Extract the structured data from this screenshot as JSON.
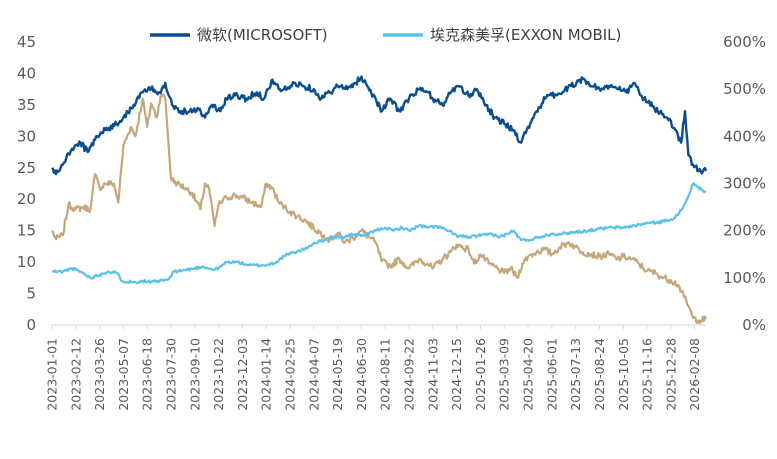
{
  "chart_data": {
    "type": "line",
    "title": "",
    "legend_position": "top",
    "colors": {
      "msft": "#0b4e8e",
      "xom": "#5bc1ea",
      "ratio": "#c4a77b",
      "axis": "#d9d9d9",
      "text": "#595959"
    },
    "series": [
      {
        "name": "微软(MICROSOFT)",
        "axis": "left",
        "color": "#0b4e8e",
        "in_legend": true
      },
      {
        "name": "埃克森美孚(EXXON MOBIL)",
        "axis": "left",
        "color": "#5bc1ea",
        "in_legend": true
      },
      {
        "name": "",
        "axis": "right",
        "color": "#c4a77b",
        "in_legend": false
      }
    ],
    "left_axis": {
      "min": 0,
      "max": 45,
      "ticks": [
        "0",
        "5",
        "10",
        "15",
        "20",
        "25",
        "30",
        "35",
        "40",
        "45"
      ]
    },
    "right_axis": {
      "min": 0,
      "max": 600,
      "ticks": [
        "0%",
        "100%",
        "200%",
        "300%",
        "400%",
        "500%",
        "600%"
      ]
    },
    "x_start": "2023-01-01",
    "x_end": "2026-02-28",
    "x_ticks": [
      "2023-01-01",
      "2023-02-12",
      "2023-03-26",
      "2023-05-07",
      "2023-06-18",
      "2023-07-30",
      "2023-09-10",
      "2023-10-22",
      "2023-12-03",
      "2024-01-14",
      "2024-02-25",
      "2024-04-07",
      "2024-05-19",
      "2024-06-30",
      "2024-08-11",
      "2024-09-22",
      "2024-11-03",
      "2024-12-15",
      "2025-01-26",
      "2025-03-09",
      "2025-04-20",
      "2025-06-01",
      "2025-07-13",
      "2025-08-24",
      "2025-10-05",
      "2025-11-16",
      "2025-12-28",
      "2026-02-08"
    ],
    "msft_points": [
      [
        "2023-01-01",
        25
      ],
      [
        "2023-01-08",
        24
      ],
      [
        "2023-01-20",
        25.5
      ],
      [
        "2023-02-05",
        28
      ],
      [
        "2023-02-20",
        29
      ],
      [
        "2023-03-05",
        27.5
      ],
      [
        "2023-03-20",
        30
      ],
      [
        "2023-04-05",
        31
      ],
      [
        "2023-04-25",
        32
      ],
      [
        "2023-05-07",
        33
      ],
      [
        "2023-05-25",
        35
      ],
      [
        "2023-06-10",
        37
      ],
      [
        "2023-06-25",
        37.5
      ],
      [
        "2023-07-10",
        37
      ],
      [
        "2023-07-20",
        38.5
      ],
      [
        "2023-08-01",
        35
      ],
      [
        "2023-08-15",
        34
      ],
      [
        "2023-09-01",
        34
      ],
      [
        "2023-09-15",
        34.5
      ],
      [
        "2023-09-28",
        33
      ],
      [
        "2023-10-10",
        35
      ],
      [
        "2023-10-25",
        34
      ],
      [
        "2023-11-05",
        36
      ],
      [
        "2023-11-20",
        36.5
      ],
      [
        "2023-12-10",
        36
      ],
      [
        "2023-12-28",
        37
      ],
      [
        "2024-01-10",
        36
      ],
      [
        "2024-01-25",
        39
      ],
      [
        "2024-02-05",
        37.5
      ],
      [
        "2024-02-20",
        37.5
      ],
      [
        "2024-03-05",
        38.5
      ],
      [
        "2024-03-20",
        38
      ],
      [
        "2024-04-07",
        37.5
      ],
      [
        "2024-04-20",
        36
      ],
      [
        "2024-05-05",
        37
      ],
      [
        "2024-05-19",
        38
      ],
      [
        "2024-06-05",
        37.5
      ],
      [
        "2024-06-20",
        38.5
      ],
      [
        "2024-06-30",
        39.5
      ],
      [
        "2024-07-10",
        38
      ],
      [
        "2024-07-25",
        36
      ],
      [
        "2024-08-05",
        34
      ],
      [
        "2024-08-20",
        36
      ],
      [
        "2024-09-05",
        34
      ],
      [
        "2024-09-22",
        36
      ],
      [
        "2024-10-10",
        37.5
      ],
      [
        "2024-10-25",
        37
      ],
      [
        "2024-11-03",
        36
      ],
      [
        "2024-11-20",
        35
      ],
      [
        "2024-12-05",
        37
      ],
      [
        "2024-12-15",
        38
      ],
      [
        "2025-01-05",
        36.5
      ],
      [
        "2025-01-20",
        37.5
      ],
      [
        "2025-02-05",
        35
      ],
      [
        "2025-02-20",
        33
      ],
      [
        "2025-03-09",
        32
      ],
      [
        "2025-03-25",
        31
      ],
      [
        "2025-04-08",
        29
      ],
      [
        "2025-04-20",
        31.5
      ],
      [
        "2025-05-05",
        34
      ],
      [
        "2025-05-20",
        36
      ],
      [
        "2025-06-01",
        36.5
      ],
      [
        "2025-06-20",
        37
      ],
      [
        "2025-07-05",
        38
      ],
      [
        "2025-07-20",
        39
      ],
      [
        "2025-08-05",
        38.5
      ],
      [
        "2025-08-24",
        37.5
      ],
      [
        "2025-09-10",
        38
      ],
      [
        "2025-09-25",
        37.5
      ],
      [
        "2025-10-10",
        37
      ],
      [
        "2025-10-25",
        38.5
      ],
      [
        "2025-11-05",
        36.5
      ],
      [
        "2025-11-16",
        35.5
      ],
      [
        "2025-12-05",
        34
      ],
      [
        "2025-12-20",
        33
      ],
      [
        "2026-01-05",
        31
      ],
      [
        "2026-01-15",
        29
      ],
      [
        "2026-01-22",
        34
      ],
      [
        "2026-01-28",
        27
      ],
      [
        "2026-02-05",
        25.5
      ],
      [
        "2026-02-15",
        24.5
      ],
      [
        "2026-02-28",
        24.5
      ]
    ],
    "xom_points": [
      [
        "2023-01-01",
        8.5
      ],
      [
        "2023-01-20",
        8.5
      ],
      [
        "2023-02-05",
        9
      ],
      [
        "2023-02-20",
        8.5
      ],
      [
        "2023-03-10",
        7.5
      ],
      [
        "2023-03-26",
        8
      ],
      [
        "2023-04-10",
        8.5
      ],
      [
        "2023-04-25",
        8.3
      ],
      [
        "2023-05-05",
        7
      ],
      [
        "2023-05-25",
        6.8
      ],
      [
        "2023-06-10",
        7
      ],
      [
        "2023-06-25",
        6.8
      ],
      [
        "2023-07-10",
        7
      ],
      [
        "2023-07-25",
        7.2
      ],
      [
        "2023-08-05",
        8.5
      ],
      [
        "2023-08-20",
        8.7
      ],
      [
        "2023-09-10",
        9
      ],
      [
        "2023-09-25",
        9.3
      ],
      [
        "2023-10-10",
        8.8
      ],
      [
        "2023-10-22",
        9
      ],
      [
        "2023-11-05",
        10
      ],
      [
        "2023-11-25",
        10
      ],
      [
        "2023-12-15",
        9.5
      ],
      [
        "2024-01-14",
        9.5
      ],
      [
        "2024-02-01",
        10
      ],
      [
        "2024-02-15",
        11
      ],
      [
        "2024-03-01",
        11.5
      ],
      [
        "2024-03-20",
        12
      ],
      [
        "2024-04-07",
        13
      ],
      [
        "2024-04-25",
        13.5
      ],
      [
        "2024-05-10",
        14
      ],
      [
        "2024-06-01",
        14
      ],
      [
        "2024-06-20",
        14.5
      ],
      [
        "2024-07-05",
        14.2
      ],
      [
        "2024-07-25",
        15
      ],
      [
        "2024-08-11",
        15.5
      ],
      [
        "2024-08-25",
        15
      ],
      [
        "2024-09-10",
        15.5
      ],
      [
        "2024-09-22",
        15
      ],
      [
        "2024-10-10",
        15.8
      ],
      [
        "2024-10-25",
        15.5
      ],
      [
        "2024-11-10",
        15.7
      ],
      [
        "2024-11-25",
        15.2
      ],
      [
        "2024-12-15",
        14.2
      ],
      [
        "2025-01-05",
        14
      ],
      [
        "2025-01-26",
        14.2
      ],
      [
        "2025-02-15",
        14.5
      ],
      [
        "2025-03-01",
        14
      ],
      [
        "2025-03-15",
        14.5
      ],
      [
        "2025-03-25",
        15
      ],
      [
        "2025-04-08",
        13.5
      ],
      [
        "2025-04-20",
        13.5
      ],
      [
        "2025-05-10",
        14
      ],
      [
        "2025-06-01",
        14.5
      ],
      [
        "2025-06-20",
        14.5
      ],
      [
        "2025-07-13",
        14.8
      ],
      [
        "2025-08-05",
        15
      ],
      [
        "2025-08-24",
        15.3
      ],
      [
        "2025-09-15",
        15.5
      ],
      [
        "2025-10-05",
        15.5
      ],
      [
        "2025-10-25",
        15.8
      ],
      [
        "2025-11-16",
        16.2
      ],
      [
        "2025-12-05",
        16.3
      ],
      [
        "2025-12-28",
        16.8
      ],
      [
        "2026-01-10",
        17.5
      ],
      [
        "2026-01-20",
        19
      ],
      [
        "2026-01-28",
        20.5
      ],
      [
        "2026-02-05",
        22.5
      ],
      [
        "2026-02-12",
        22
      ],
      [
        "2026-02-20",
        21.5
      ],
      [
        "2026-02-28",
        21.2
      ]
    ],
    "ratio_points": [
      [
        "2023-01-01",
        200
      ],
      [
        "2023-01-08",
        182
      ],
      [
        "2023-01-20",
        190
      ],
      [
        "2023-01-30",
        255
      ],
      [
        "2023-02-12",
        245
      ],
      [
        "2023-02-25",
        250
      ],
      [
        "2023-03-10",
        245
      ],
      [
        "2023-03-18",
        320
      ],
      [
        "2023-03-26",
        290
      ],
      [
        "2023-04-05",
        300
      ],
      [
        "2023-04-20",
        300
      ],
      [
        "2023-04-28",
        260
      ],
      [
        "2023-05-07",
        380
      ],
      [
        "2023-05-20",
        420
      ],
      [
        "2023-05-28",
        400
      ],
      [
        "2023-06-10",
        480
      ],
      [
        "2023-06-18",
        420
      ],
      [
        "2023-06-25",
        470
      ],
      [
        "2023-07-05",
        440
      ],
      [
        "2023-07-12",
        490
      ],
      [
        "2023-07-20",
        480
      ],
      [
        "2023-07-30",
        310
      ],
      [
        "2023-08-10",
        300
      ],
      [
        "2023-08-25",
        290
      ],
      [
        "2023-09-05",
        280
      ],
      [
        "2023-09-20",
        245
      ],
      [
        "2023-09-28",
        300
      ],
      [
        "2023-10-05",
        290
      ],
      [
        "2023-10-15",
        210
      ],
      [
        "2023-10-22",
        255
      ],
      [
        "2023-11-05",
        270
      ],
      [
        "2023-11-20",
        275
      ],
      [
        "2023-12-03",
        270
      ],
      [
        "2023-12-20",
        260
      ],
      [
        "2024-01-05",
        250
      ],
      [
        "2024-01-14",
        300
      ],
      [
        "2024-01-25",
        290
      ],
      [
        "2024-02-05",
        260
      ],
      [
        "2024-02-15",
        250
      ],
      [
        "2024-02-25",
        240
      ],
      [
        "2024-03-10",
        230
      ],
      [
        "2024-03-25",
        220
      ],
      [
        "2024-04-07",
        205
      ],
      [
        "2024-04-25",
        190
      ],
      [
        "2024-05-05",
        180
      ],
      [
        "2024-05-19",
        195
      ],
      [
        "2024-06-01",
        175
      ],
      [
        "2024-06-15",
        185
      ],
      [
        "2024-06-30",
        200
      ],
      [
        "2024-07-15",
        185
      ],
      [
        "2024-07-25",
        175
      ],
      [
        "2024-08-05",
        135
      ],
      [
        "2024-08-20",
        125
      ],
      [
        "2024-09-05",
        140
      ],
      [
        "2024-09-22",
        120
      ],
      [
        "2024-10-10",
        140
      ],
      [
        "2024-10-25",
        130
      ],
      [
        "2024-11-03",
        120
      ],
      [
        "2024-11-20",
        140
      ],
      [
        "2024-12-05",
        155
      ],
      [
        "2024-12-15",
        170
      ],
      [
        "2025-01-05",
        160
      ],
      [
        "2025-01-15",
        130
      ],
      [
        "2025-01-26",
        150
      ],
      [
        "2025-02-10",
        130
      ],
      [
        "2025-02-25",
        120
      ],
      [
        "2025-03-09",
        110
      ],
      [
        "2025-03-20",
        120
      ],
      [
        "2025-04-01",
        100
      ],
      [
        "2025-04-10",
        130
      ],
      [
        "2025-04-20",
        145
      ],
      [
        "2025-05-05",
        155
      ],
      [
        "2025-05-20",
        160
      ],
      [
        "2025-06-01",
        150
      ],
      [
        "2025-06-15",
        165
      ],
      [
        "2025-07-01",
        175
      ],
      [
        "2025-07-13",
        165
      ],
      [
        "2025-07-25",
        155
      ],
      [
        "2025-08-10",
        150
      ],
      [
        "2025-08-24",
        145
      ],
      [
        "2025-09-10",
        150
      ],
      [
        "2025-09-25",
        140
      ],
      [
        "2025-10-05",
        145
      ],
      [
        "2025-10-20",
        140
      ],
      [
        "2025-11-01",
        130
      ],
      [
        "2025-11-16",
        115
      ],
      [
        "2025-12-01",
        110
      ],
      [
        "2025-12-15",
        100
      ],
      [
        "2025-12-28",
        95
      ],
      [
        "2026-01-10",
        85
      ],
      [
        "2026-01-20",
        60
      ],
      [
        "2026-01-28",
        40
      ],
      [
        "2026-02-05",
        15
      ],
      [
        "2026-02-15",
        10
      ],
      [
        "2026-02-28",
        12
      ]
    ]
  }
}
